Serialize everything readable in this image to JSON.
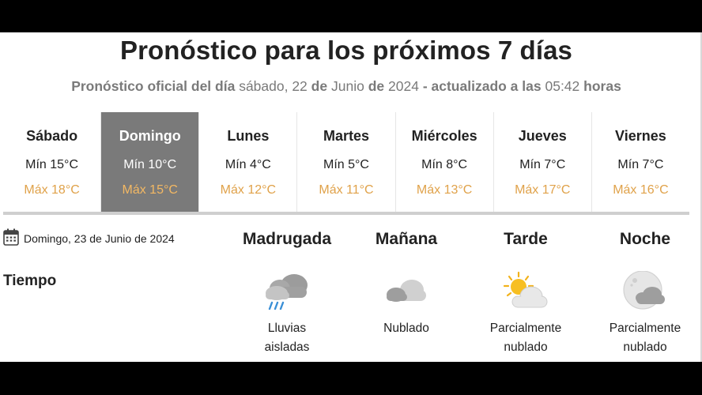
{
  "header": {
    "title": "Pronóstico para los próximos 7 días",
    "subtitle_prefix": "Pronóstico oficial del día",
    "subtitle_weekday_date": "sábado, 22",
    "subtitle_de1": "de",
    "subtitle_month": "Junio",
    "subtitle_de2": "de",
    "subtitle_year": "2024",
    "subtitle_updated": "- actualizado a las",
    "subtitle_time": "05:42",
    "subtitle_hours": "horas"
  },
  "days": [
    {
      "name": "Sábado",
      "min": "Mín 15°C",
      "max": "Máx 18°C"
    },
    {
      "name": "Domingo",
      "min": "Mín 10°C",
      "max": "Máx 15°C"
    },
    {
      "name": "Lunes",
      "min": "Mín 4°C",
      "max": "Máx 12°C"
    },
    {
      "name": "Martes",
      "min": "Mín 5°C",
      "max": "Máx 11°C"
    },
    {
      "name": "Miércoles",
      "min": "Mín 8°C",
      "max": "Máx 13°C"
    },
    {
      "name": "Jueves",
      "min": "Mín 7°C",
      "max": "Máx 17°C"
    },
    {
      "name": "Viernes",
      "min": "Mín 7°C",
      "max": "Máx 16°C"
    }
  ],
  "selected_day": "Domingo",
  "detail": {
    "date": "Domingo, 23 de Junio de 2024",
    "row_label": "Tiempo",
    "periods": [
      {
        "name": "Madrugada",
        "desc_line1": "Lluvias",
        "desc_line2": "aisladas",
        "icon": "rain-cloud-icon"
      },
      {
        "name": "Mañana",
        "desc_line1": "Nublado",
        "desc_line2": "",
        "icon": "cloud-icon"
      },
      {
        "name": "Tarde",
        "desc_line1": "Parcialmente",
        "desc_line2": "nublado",
        "icon": "sun-cloud-icon"
      },
      {
        "name": "Noche",
        "desc_line1": "Parcialmente",
        "desc_line2": "nublado",
        "icon": "moon-cloud-icon"
      }
    ]
  },
  "colors": {
    "max_temp": "#e0a24a",
    "selected_bg": "#7a7a7a",
    "subtitle": "#7a7a7a"
  }
}
